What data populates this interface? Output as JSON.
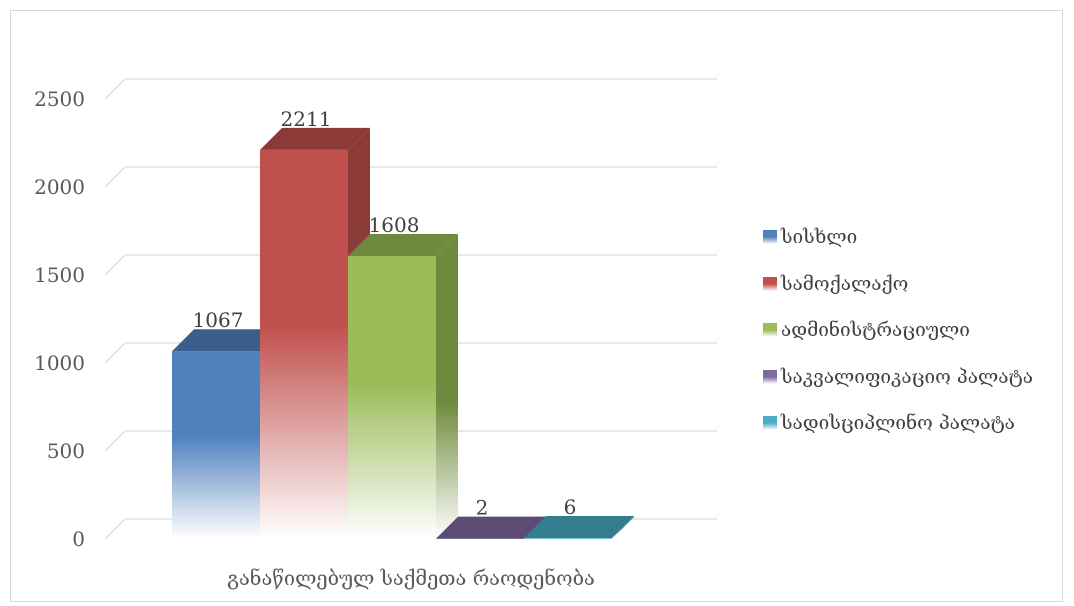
{
  "chart_data": {
    "type": "bar",
    "style": "3d-clustered-column",
    "categories": [
      "განაწილებულ საქმეთა რაოდენობა"
    ],
    "series": [
      {
        "name": "სისხლი",
        "values": [
          1067
        ],
        "color": "#4f81bd",
        "color_dark": "#3a5f8c"
      },
      {
        "name": "სამოქალაქო",
        "values": [
          2211
        ],
        "color": "#c0504d",
        "color_dark": "#8c3a38"
      },
      {
        "name": "ადმინისტრაციული",
        "values": [
          1608
        ],
        "color": "#9bbb59",
        "color_dark": "#6f8a3e"
      },
      {
        "name": "საკვალიფიკაციო პალატა",
        "values": [
          2
        ],
        "color": "#7f6a9e",
        "color_dark": "#5c4c74"
      },
      {
        "name": "სადისციპლინო პალატა",
        "values": [
          6
        ],
        "color": "#4aacc6",
        "color_dark": "#347d90"
      }
    ],
    "data_labels": [
      "1067",
      "2211",
      "1608",
      "2",
      "6"
    ],
    "yticks": [
      "0",
      "500",
      "1000",
      "1500",
      "2000",
      "2500"
    ],
    "ylim": [
      0,
      2500
    ],
    "grid": true,
    "legend": "right"
  }
}
